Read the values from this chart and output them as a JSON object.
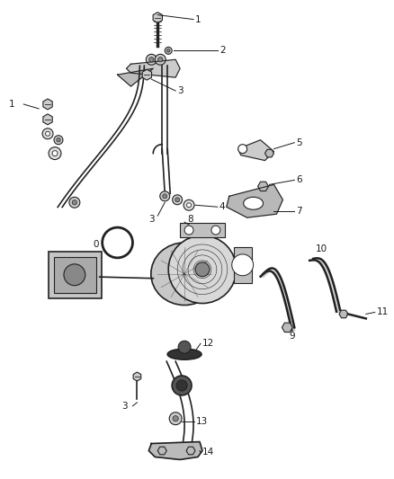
{
  "bg_color": "#ffffff",
  "label_color": "#1a1a1a",
  "line_color": "#1a1a1a",
  "dark_color": "#222222",
  "gray_fill": "#888888",
  "light_gray": "#cccccc",
  "figsize": [
    4.38,
    5.33
  ],
  "dpi": 100
}
